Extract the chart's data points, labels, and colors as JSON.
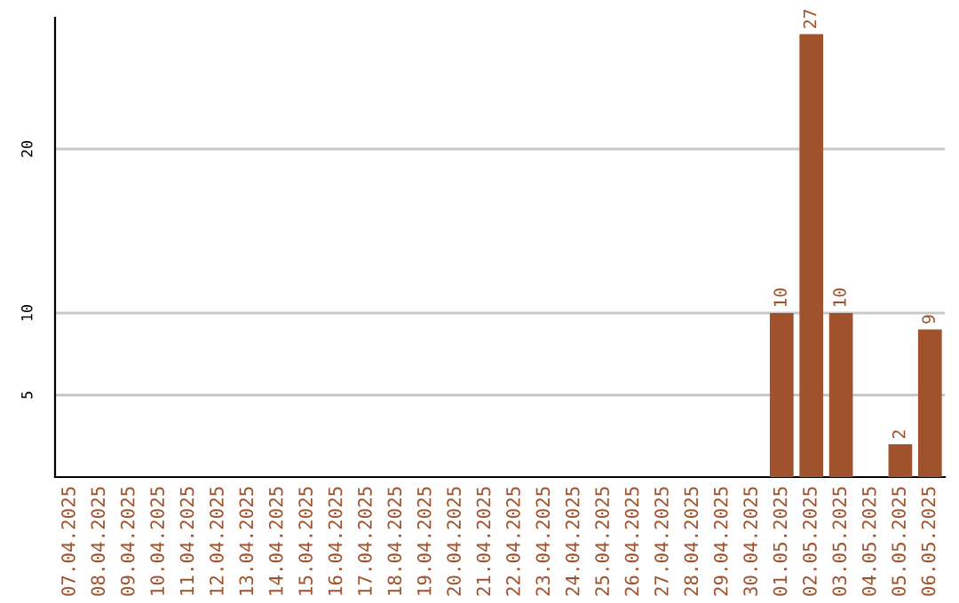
{
  "chart_data": {
    "type": "bar",
    "categories": [
      "07.04.2025",
      "08.04.2025",
      "09.04.2025",
      "10.04.2025",
      "11.04.2025",
      "12.04.2025",
      "13.04.2025",
      "14.04.2025",
      "15.04.2025",
      "16.04.2025",
      "17.04.2025",
      "18.04.2025",
      "19.04.2025",
      "20.04.2025",
      "21.04.2025",
      "22.04.2025",
      "23.04.2025",
      "24.04.2025",
      "25.04.2025",
      "26.04.2025",
      "27.04.2025",
      "28.04.2025",
      "29.04.2025",
      "30.04.2025",
      "01.05.2025",
      "02.05.2025",
      "03.05.2025",
      "04.05.2025",
      "05.05.2025",
      "06.05.2025"
    ],
    "values": [
      0,
      0,
      0,
      0,
      0,
      0,
      0,
      0,
      0,
      0,
      0,
      0,
      0,
      0,
      0,
      0,
      0,
      0,
      0,
      0,
      0,
      0,
      0,
      0,
      10,
      27,
      10,
      0,
      2,
      9
    ],
    "value_labels": [
      null,
      null,
      null,
      null,
      null,
      null,
      null,
      null,
      null,
      null,
      null,
      null,
      null,
      null,
      null,
      null,
      null,
      null,
      null,
      null,
      null,
      null,
      null,
      null,
      "10",
      "27",
      "10",
      null,
      "2",
      "9"
    ],
    "color": "#a0522d",
    "ylim": [
      0,
      28
    ],
    "yticks": [
      5,
      10,
      20
    ],
    "grid": "y"
  }
}
